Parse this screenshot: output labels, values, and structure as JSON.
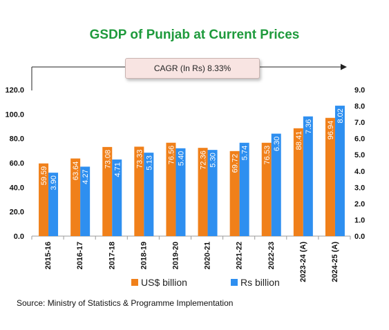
{
  "title": "GSDP of Punjab at Current Prices",
  "cagr_label": "CAGR (In Rs) 8.33%",
  "source": "Source: Ministry of Statistics & Programme Implementation",
  "colors": {
    "usd": "#f0801a",
    "rs": "#2e8ff0",
    "title": "#1e9a3c"
  },
  "chart_data": {
    "type": "bar",
    "categories": [
      "2015-16",
      "2016-17",
      "2017-18",
      "2018-19",
      "2019-20",
      "2020-21",
      "2021-22",
      "2022-23",
      "2023-24 (A)",
      "2024-25 (A)"
    ],
    "series": [
      {
        "name": "US$ billion",
        "axis": "left",
        "color": "#f0801a",
        "values": [
          59.59,
          63.64,
          73.08,
          73.33,
          76.56,
          72.36,
          69.72,
          76.53,
          88.41,
          96.94
        ],
        "labels": [
          "59.59",
          "63.64",
          "73.08",
          "73.33",
          "76.56",
          "72.36",
          "69.72",
          "76.53",
          "88.41",
          "96.94"
        ]
      },
      {
        "name": "Rs billion",
        "axis": "right",
        "color": "#2e8ff0",
        "values": [
          3.9,
          4.27,
          4.71,
          5.13,
          5.4,
          5.3,
          5.74,
          6.3,
          7.36,
          8.02
        ],
        "labels": [
          "3.90",
          "4.27",
          "4.71",
          "5.13",
          "5.40",
          "5.30",
          "5.74",
          "6.30",
          "7.36",
          "8.02"
        ]
      }
    ],
    "y_left": {
      "range": [
        0,
        120
      ],
      "ticks": [
        "0.0",
        "20.0",
        "40.0",
        "60.0",
        "80.0",
        "100.0",
        "120.0"
      ]
    },
    "y_right": {
      "range": [
        0,
        9
      ],
      "ticks": [
        "0.0",
        "1.0",
        "2.0",
        "3.0",
        "4.0",
        "5.0",
        "6.0",
        "7.0",
        "8.0",
        "9.0"
      ]
    },
    "grid": false,
    "legend": "bottom"
  }
}
